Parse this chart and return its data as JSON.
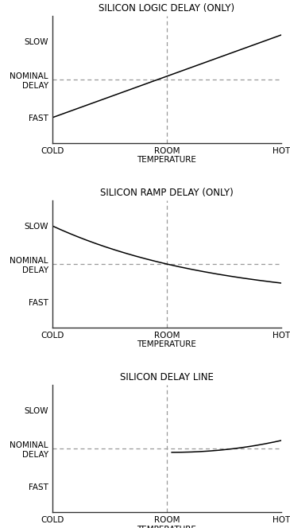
{
  "titles": [
    "SILICON LOGIC DELAY (ONLY)",
    "SILICON RAMP DELAY (ONLY)",
    "SILICON DELAY LINE"
  ],
  "x_ticks": [
    0,
    50,
    100
  ],
  "x_tick_labels": [
    "COLD",
    "ROOM\nTEMPERATURE",
    "HOT"
  ],
  "y_ticks": [
    20,
    50,
    80
  ],
  "y_tick_labels": [
    "FAST",
    "NOMINAL\nDELAY",
    "SLOW"
  ],
  "room_x": 50,
  "nominal_y": 50,
  "y_min": 0,
  "y_max": 100,
  "x_min": 0,
  "x_max": 100,
  "line_color": "#000000",
  "dashed_color": "#999999",
  "bg_color": "#ffffff",
  "title_fontsize": 8.5,
  "tick_fontsize": 7.5
}
